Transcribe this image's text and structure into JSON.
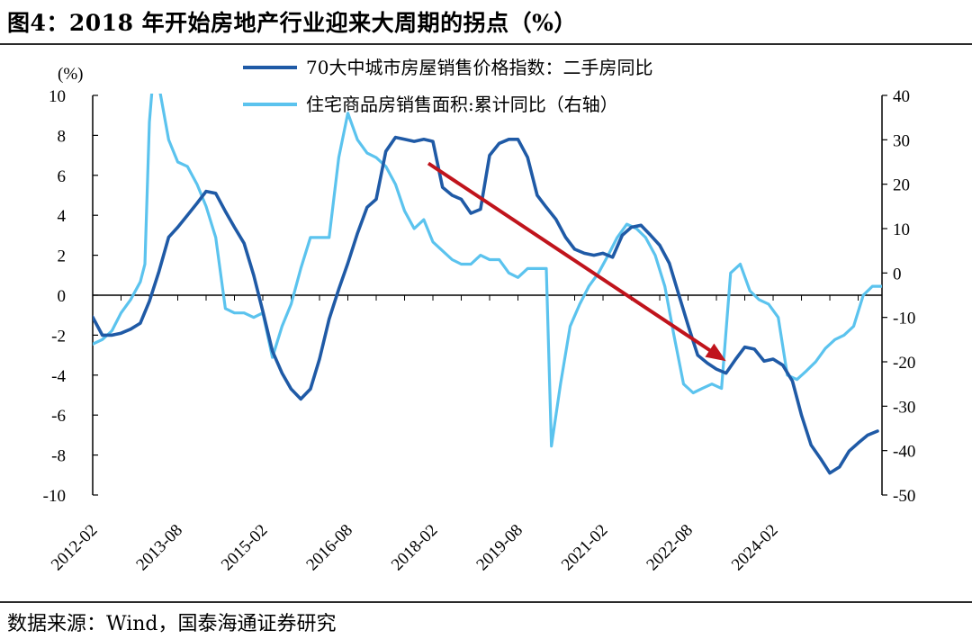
{
  "title": "图4：2018 年开始房地产行业迎来大周期的拐点（%）",
  "source": "数据来源：Wind，国泰海通证券研究",
  "colors": {
    "series1": "#1f5aa6",
    "series2": "#5bc3ee",
    "arrow": "#c0141c",
    "axis": "#000000"
  },
  "chart_data": {
    "type": "line",
    "y_left": {
      "label": "(%)",
      "ylim": [
        -10,
        10
      ],
      "ticks": [
        "10",
        "8",
        "6",
        "4",
        "2",
        "0",
        "-2",
        "-4",
        "-6",
        "-8",
        "-10"
      ]
    },
    "y_right": {
      "ylim": [
        -50,
        40
      ],
      "ticks": [
        "40",
        "30",
        "20",
        "10",
        "0",
        "-10",
        "-20",
        "-30",
        "-40",
        "-50"
      ]
    },
    "x_ticks": [
      "2012-02",
      "2013-08",
      "2015-02",
      "2016-08",
      "2018-02",
      "2019-08",
      "2021-02",
      "2022-08",
      "2024-02"
    ],
    "grid": false,
    "legend_position": "top",
    "series": [
      {
        "name": "70大中城市房屋销售价格指数：二手房同比",
        "axis": "left",
        "points": [
          [
            2012.08,
            -1.1
          ],
          [
            2012.25,
            -2.0
          ],
          [
            2012.42,
            -2.0
          ],
          [
            2012.58,
            -1.9
          ],
          [
            2012.75,
            -1.7
          ],
          [
            2012.92,
            -1.4
          ],
          [
            2013.08,
            -0.3
          ],
          [
            2013.25,
            1.2
          ],
          [
            2013.42,
            2.9
          ],
          [
            2013.58,
            3.4
          ],
          [
            2013.75,
            4.0
          ],
          [
            2013.92,
            4.6
          ],
          [
            2014.08,
            5.2
          ],
          [
            2014.25,
            5.1
          ],
          [
            2014.42,
            4.2
          ],
          [
            2014.58,
            3.4
          ],
          [
            2014.75,
            2.6
          ],
          [
            2014.92,
            1.0
          ],
          [
            2015.08,
            -0.8
          ],
          [
            2015.25,
            -2.8
          ],
          [
            2015.42,
            -3.9
          ],
          [
            2015.58,
            -4.7
          ],
          [
            2015.75,
            -5.2
          ],
          [
            2015.92,
            -4.7
          ],
          [
            2016.08,
            -3.2
          ],
          [
            2016.25,
            -1.2
          ],
          [
            2016.42,
            0.3
          ],
          [
            2016.58,
            1.6
          ],
          [
            2016.75,
            3.1
          ],
          [
            2016.92,
            4.4
          ],
          [
            2017.08,
            4.8
          ],
          [
            2017.25,
            7.2
          ],
          [
            2017.42,
            7.9
          ],
          [
            2017.58,
            7.8
          ],
          [
            2017.75,
            7.7
          ],
          [
            2017.92,
            7.8
          ],
          [
            2018.08,
            7.7
          ],
          [
            2018.25,
            5.4
          ],
          [
            2018.42,
            5.0
          ],
          [
            2018.58,
            4.8
          ],
          [
            2018.75,
            4.1
          ],
          [
            2018.92,
            4.3
          ],
          [
            2019.08,
            7.0
          ],
          [
            2019.25,
            7.6
          ],
          [
            2019.42,
            7.8
          ],
          [
            2019.58,
            7.8
          ],
          [
            2019.75,
            6.9
          ],
          [
            2019.92,
            5.0
          ],
          [
            2020.08,
            4.4
          ],
          [
            2020.25,
            3.8
          ],
          [
            2020.42,
            2.9
          ],
          [
            2020.58,
            2.3
          ],
          [
            2020.75,
            2.1
          ],
          [
            2020.92,
            2.0
          ],
          [
            2021.08,
            2.1
          ],
          [
            2021.25,
            1.9
          ],
          [
            2021.42,
            3.0
          ],
          [
            2021.58,
            3.4
          ],
          [
            2021.75,
            3.5
          ],
          [
            2021.92,
            3.0
          ],
          [
            2022.08,
            2.5
          ],
          [
            2022.25,
            1.6
          ],
          [
            2022.42,
            0.0
          ],
          [
            2022.58,
            -1.5
          ],
          [
            2022.75,
            -3.0
          ],
          [
            2022.92,
            -3.4
          ],
          [
            2023.08,
            -3.7
          ],
          [
            2023.25,
            -3.9
          ],
          [
            2023.42,
            -3.2
          ],
          [
            2023.58,
            -2.6
          ],
          [
            2023.75,
            -2.7
          ],
          [
            2023.92,
            -3.3
          ],
          [
            2024.08,
            -3.2
          ],
          [
            2024.25,
            -3.5
          ],
          [
            2024.42,
            -4.3
          ],
          [
            2024.58,
            -6.0
          ],
          [
            2024.75,
            -7.5
          ],
          [
            2024.92,
            -8.2
          ],
          [
            2025.08,
            -8.9
          ],
          [
            2025.25,
            -8.6
          ],
          [
            2025.42,
            -7.8
          ],
          [
            2025.58,
            -7.4
          ],
          [
            2025.75,
            -7.0
          ],
          [
            2025.92,
            -6.8
          ]
        ]
      },
      {
        "name": "住宅商品房销售面积:累计同比（右轴）",
        "axis": "right",
        "points": [
          [
            2012.08,
            -16
          ],
          [
            2012.25,
            -15
          ],
          [
            2012.42,
            -13
          ],
          [
            2012.58,
            -9
          ],
          [
            2012.75,
            -6
          ],
          [
            2012.92,
            -2
          ],
          [
            2013.0,
            2
          ],
          [
            2013.08,
            34
          ],
          [
            2013.17,
            48
          ],
          [
            2013.25,
            42
          ],
          [
            2013.42,
            30
          ],
          [
            2013.58,
            25
          ],
          [
            2013.75,
            24
          ],
          [
            2013.92,
            20
          ],
          [
            2014.08,
            15
          ],
          [
            2014.25,
            8
          ],
          [
            2014.42,
            -8
          ],
          [
            2014.58,
            -9
          ],
          [
            2014.75,
            -9
          ],
          [
            2014.92,
            -10
          ],
          [
            2015.08,
            -9
          ],
          [
            2015.25,
            -19
          ],
          [
            2015.42,
            -12
          ],
          [
            2015.58,
            -7
          ],
          [
            2015.75,
            1
          ],
          [
            2015.92,
            8
          ],
          [
            2016.08,
            8
          ],
          [
            2016.25,
            8
          ],
          [
            2016.42,
            26
          ],
          [
            2016.58,
            36
          ],
          [
            2016.75,
            30
          ],
          [
            2016.92,
            27
          ],
          [
            2017.08,
            26
          ],
          [
            2017.25,
            24
          ],
          [
            2017.42,
            20
          ],
          [
            2017.58,
            14
          ],
          [
            2017.75,
            10
          ],
          [
            2017.92,
            12
          ],
          [
            2018.08,
            7
          ],
          [
            2018.25,
            5
          ],
          [
            2018.42,
            3
          ],
          [
            2018.58,
            2
          ],
          [
            2018.75,
            2
          ],
          [
            2018.92,
            4
          ],
          [
            2019.08,
            3
          ],
          [
            2019.25,
            3
          ],
          [
            2019.42,
            0
          ],
          [
            2019.58,
            -1
          ],
          [
            2019.75,
            1
          ],
          [
            2019.92,
            1
          ],
          [
            2020.08,
            1
          ],
          [
            2020.17,
            -39
          ],
          [
            2020.33,
            -25
          ],
          [
            2020.5,
            -12
          ],
          [
            2020.67,
            -7
          ],
          [
            2020.83,
            -3
          ],
          [
            2021.0,
            0
          ],
          [
            2021.17,
            4
          ],
          [
            2021.33,
            8
          ],
          [
            2021.5,
            11
          ],
          [
            2021.67,
            10
          ],
          [
            2021.83,
            8
          ],
          [
            2022.0,
            4
          ],
          [
            2022.17,
            -3
          ],
          [
            2022.33,
            -14
          ],
          [
            2022.5,
            -25
          ],
          [
            2022.67,
            -27
          ],
          [
            2022.83,
            -26
          ],
          [
            2023.0,
            -25
          ],
          [
            2023.17,
            -26
          ],
          [
            2023.33,
            0
          ],
          [
            2023.5,
            2
          ],
          [
            2023.67,
            -4
          ],
          [
            2023.83,
            -6
          ],
          [
            2024.0,
            -7
          ],
          [
            2024.17,
            -10
          ],
          [
            2024.33,
            -23
          ],
          [
            2024.5,
            -24
          ],
          [
            2024.67,
            -22
          ],
          [
            2024.83,
            -20
          ],
          [
            2025.0,
            -17
          ],
          [
            2025.17,
            -15
          ],
          [
            2025.33,
            -14
          ],
          [
            2025.5,
            -12
          ],
          [
            2025.67,
            -5
          ],
          [
            2025.83,
            -3
          ],
          [
            2026.0,
            -3
          ]
        ]
      }
    ],
    "annotation": {
      "type": "arrow",
      "from": [
        2018.0,
        6.6
      ],
      "to": [
        2023.25,
        -3.3
      ]
    }
  }
}
